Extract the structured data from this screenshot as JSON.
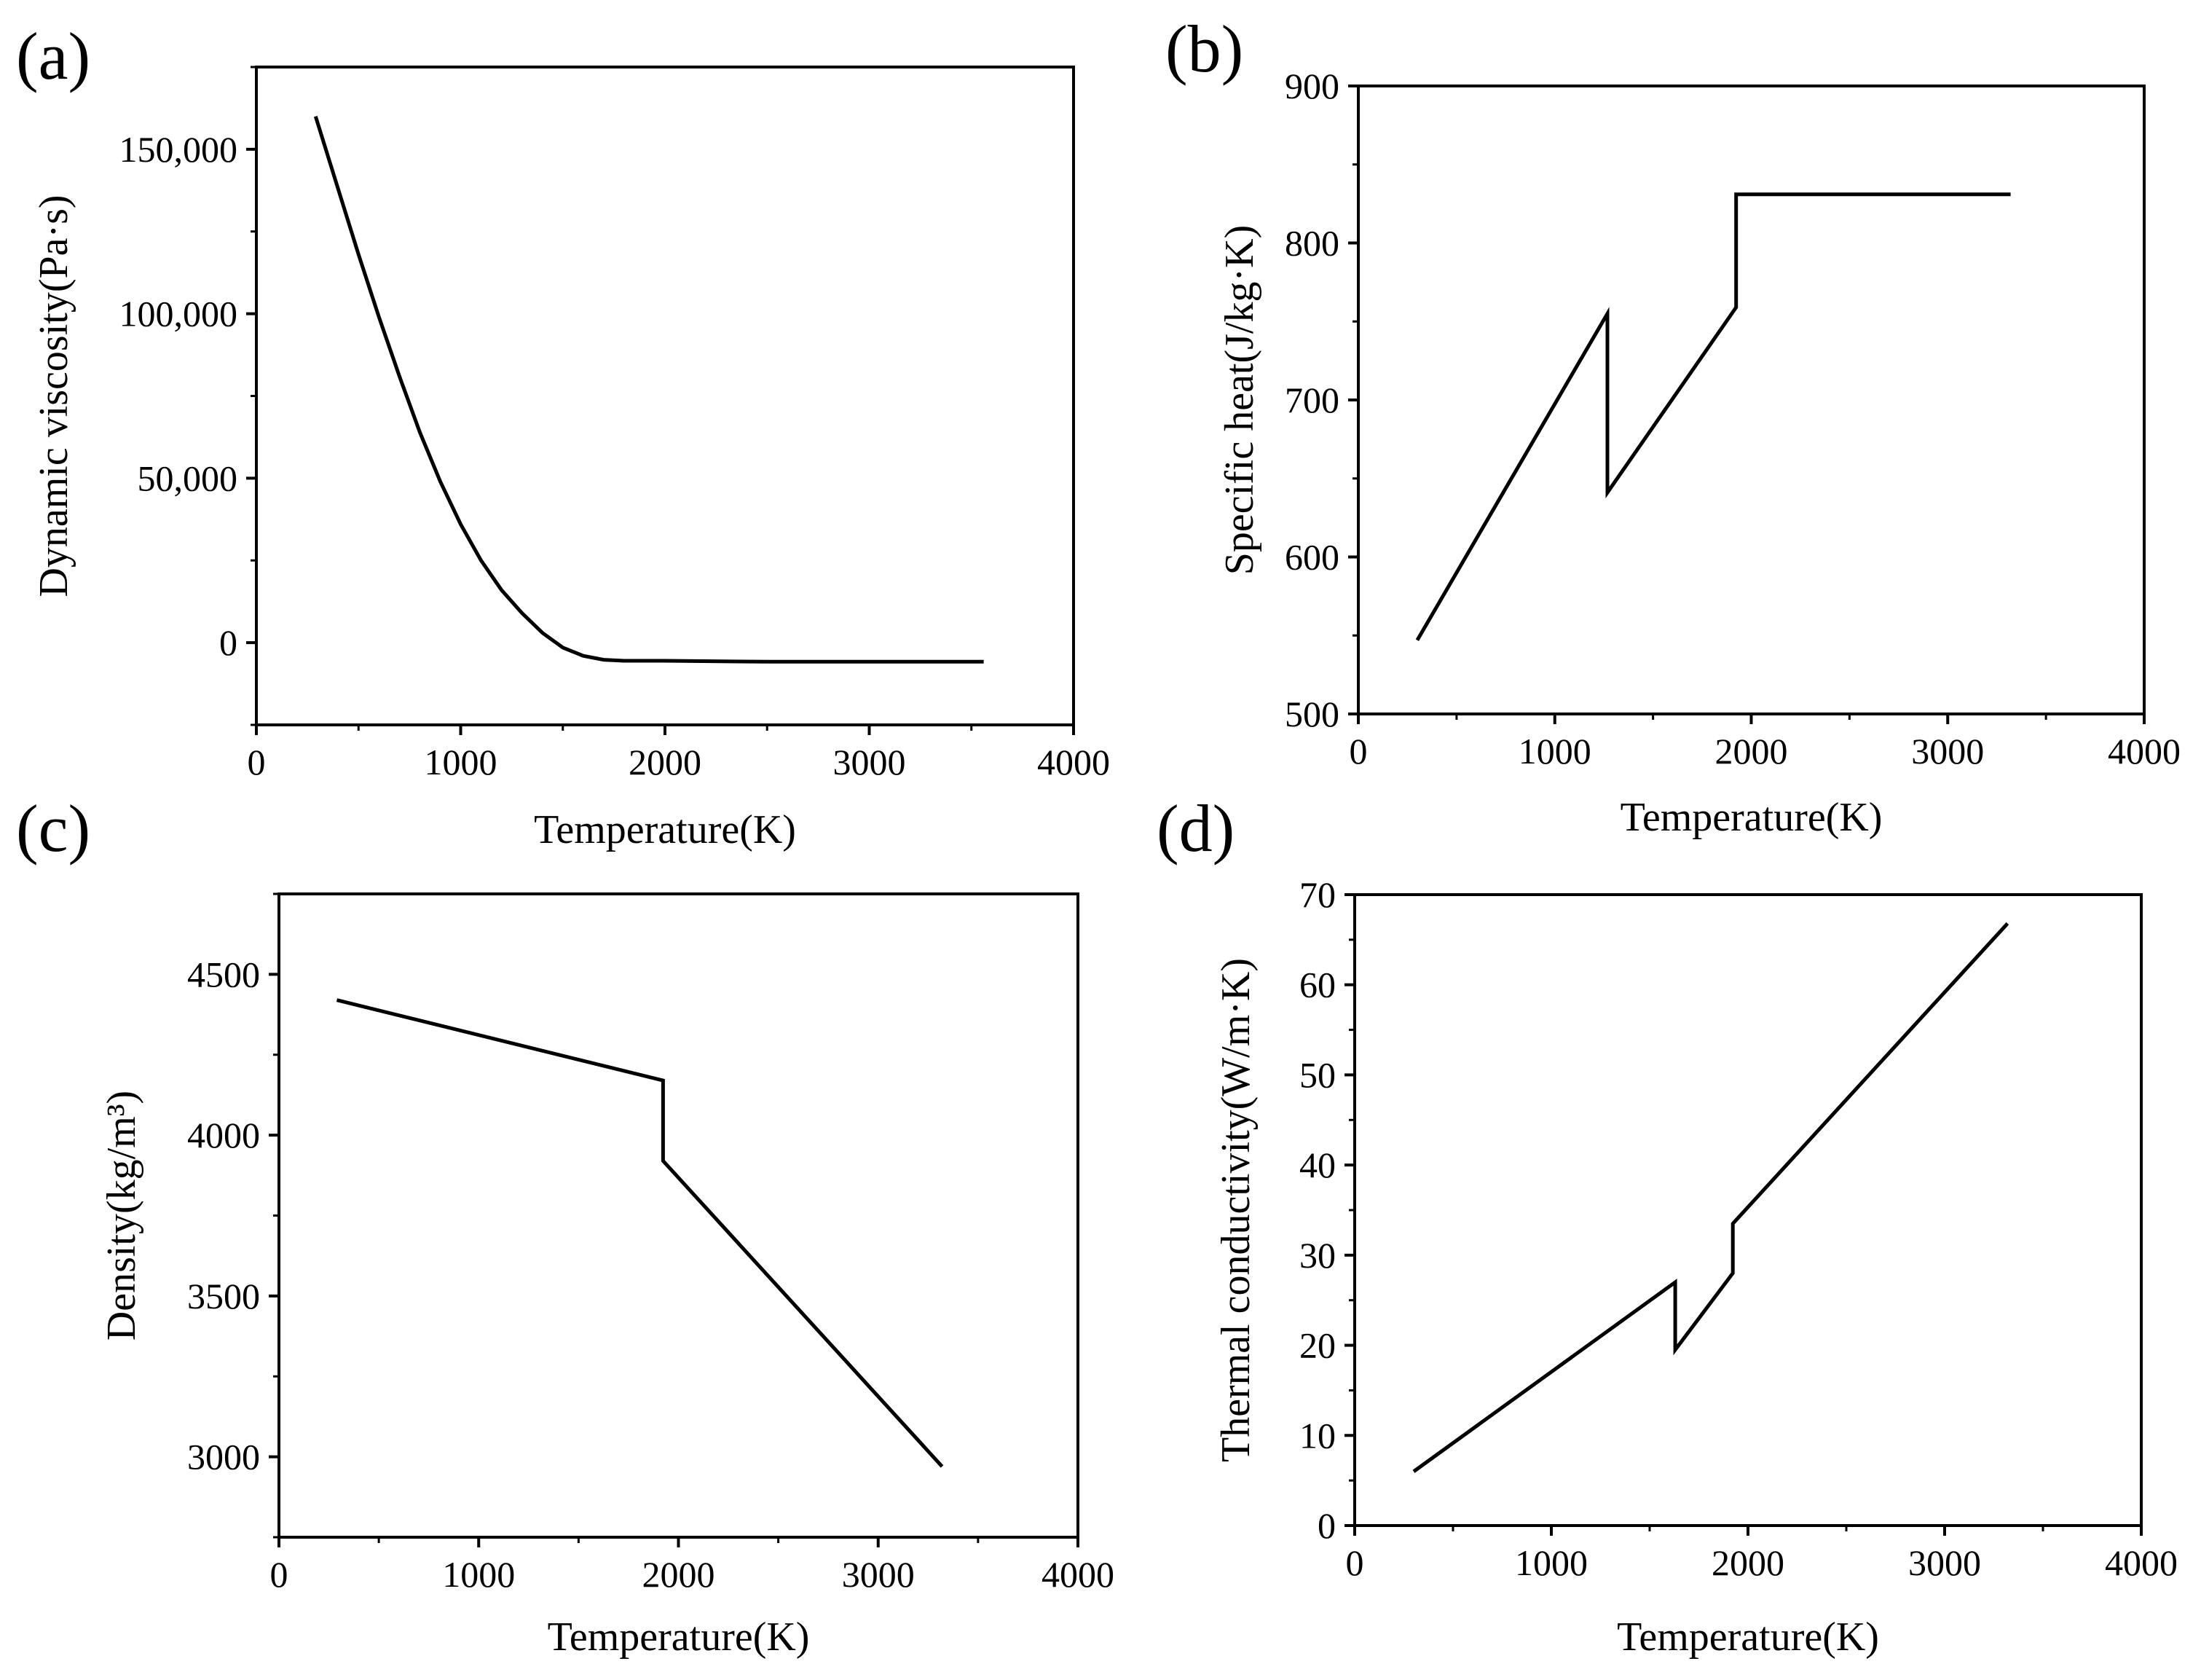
{
  "colors": {
    "line": "#000000",
    "background": "#ffffff"
  },
  "chart_data": [
    {
      "panel": "(a)",
      "type": "line",
      "xlabel": "Temperature(K)",
      "ylabel": "Dynamic viscosity(Pa·s)",
      "xlim": [
        0,
        4000
      ],
      "ylim": [
        -25000,
        175000
      ],
      "xticks": [
        0,
        1000,
        2000,
        3000,
        4000
      ],
      "xtick_labels": [
        "0",
        "1000",
        "2000",
        "3000",
        "4000"
      ],
      "yticks": [
        0,
        50000,
        100000,
        150000
      ],
      "ytick_labels": [
        "0",
        "50,000",
        "100,000",
        "150,000"
      ],
      "grid": false,
      "series": [
        {
          "name": "Dynamic viscosity",
          "x": [
            290,
            400,
            500,
            600,
            700,
            800,
            900,
            1000,
            1100,
            1200,
            1300,
            1400,
            1500,
            1600,
            1700,
            1800,
            2000,
            2500,
            3000,
            3560
          ],
          "y": [
            160000,
            138000,
            118000,
            99000,
            81000,
            64000,
            49000,
            36000,
            25000,
            16000,
            9000,
            3000,
            -1500,
            -4000,
            -5200,
            -5500,
            -5500,
            -5800,
            -5800,
            -5800
          ]
        }
      ]
    },
    {
      "panel": "(b)",
      "type": "line",
      "xlabel": "Temperature(K)",
      "ylabel": "Specific heat(J/kg·K)",
      "xlim": [
        0,
        4000
      ],
      "ylim": [
        500,
        900
      ],
      "xticks": [
        0,
        1000,
        2000,
        3000,
        4000
      ],
      "xtick_labels": [
        "0",
        "1000",
        "2000",
        "3000",
        "4000"
      ],
      "yticks": [
        500,
        600,
        700,
        800,
        900
      ],
      "ytick_labels": [
        "500",
        "600",
        "700",
        "800",
        "900"
      ],
      "grid": false,
      "series": [
        {
          "name": "Specific heat",
          "x": [
            300,
            1268,
            1268,
            1923,
            1923,
            3320
          ],
          "y": [
            547,
            755,
            641,
            759,
            831,
            831
          ]
        }
      ]
    },
    {
      "panel": "(c)",
      "type": "line",
      "xlabel": "Temperature(K)",
      "ylabel": "Density(kg/m³)",
      "xlim": [
        0,
        4000
      ],
      "ylim": [
        2750,
        4750
      ],
      "xticks": [
        0,
        1000,
        2000,
        3000,
        4000
      ],
      "xtick_labels": [
        "0",
        "1000",
        "2000",
        "3000",
        "4000"
      ],
      "yticks": [
        3000,
        3500,
        4000,
        4500
      ],
      "ytick_labels": [
        "3000",
        "3500",
        "4000",
        "4500"
      ],
      "grid": false,
      "series": [
        {
          "name": "Density",
          "x": [
            290,
            1923,
            1923,
            3320
          ],
          "y": [
            4420,
            4170,
            3920,
            2970
          ]
        }
      ]
    },
    {
      "panel": "(d)",
      "type": "line",
      "xlabel": "Temperature(K)",
      "ylabel": "Thermal conductivity(W/m·K)",
      "xlim": [
        0,
        4000
      ],
      "ylim": [
        0,
        70
      ],
      "xticks": [
        0,
        1000,
        2000,
        3000,
        4000
      ],
      "xtick_labels": [
        "0",
        "1000",
        "2000",
        "3000",
        "4000"
      ],
      "yticks": [
        0,
        10,
        20,
        30,
        40,
        50,
        60,
        70
      ],
      "ytick_labels": [
        "0",
        "10",
        "20",
        "30",
        "40",
        "50",
        "60",
        "70"
      ],
      "grid": false,
      "series": [
        {
          "name": "Thermal conductivity",
          "x": [
            300,
            1630,
            1630,
            1923,
            1923,
            3320
          ],
          "y": [
            6,
            27,
            19.5,
            28,
            33.5,
            66.8
          ]
        }
      ]
    }
  ]
}
